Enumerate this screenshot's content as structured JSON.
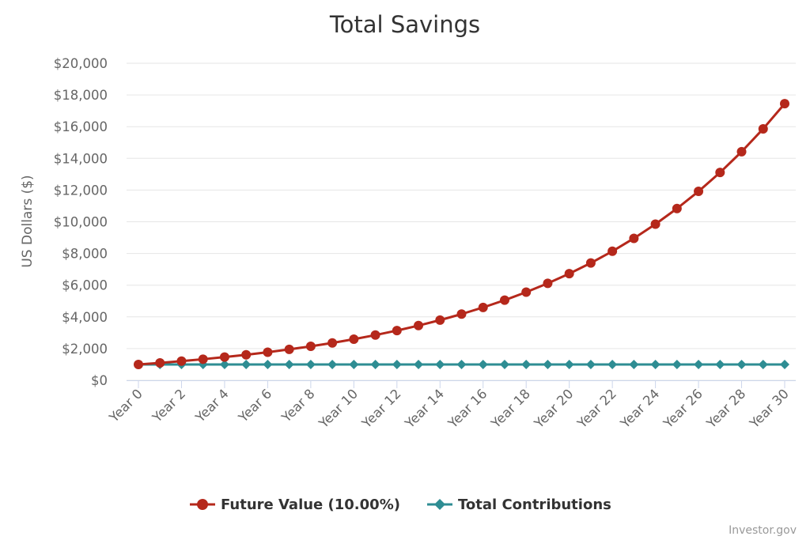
{
  "chart_data": {
    "type": "line",
    "title": "Total Savings",
    "ylabel": "US Dollars ($)",
    "xlabel": "",
    "ylim": [
      0,
      20000
    ],
    "y_ticks": [
      "$0",
      "$2,000",
      "$4,000",
      "$6,000",
      "$8,000",
      "$10,000",
      "$12,000",
      "$14,000",
      "$16,000",
      "$18,000",
      "$20,000"
    ],
    "x_ticks": [
      "Year 0",
      "Year 2",
      "Year 4",
      "Year 6",
      "Year 8",
      "Year 10",
      "Year 12",
      "Year 14",
      "Year 16",
      "Year 18",
      "Year 20",
      "Year 22",
      "Year 24",
      "Year 26",
      "Year 28",
      "Year 30"
    ],
    "x": [
      0,
      1,
      2,
      3,
      4,
      5,
      6,
      7,
      8,
      9,
      10,
      11,
      12,
      13,
      14,
      15,
      16,
      17,
      18,
      19,
      20,
      21,
      22,
      23,
      24,
      25,
      26,
      27,
      28,
      29,
      30
    ],
    "grid": true,
    "legend_position": "bottom-center",
    "series": [
      {
        "name": "Future Value (10.00%)",
        "color": "#b5281b",
        "marker": "circle",
        "values": [
          1000,
          1100,
          1210,
          1331,
          1464,
          1611,
          1772,
          1949,
          2144,
          2358,
          2594,
          2853,
          3138,
          3452,
          3797,
          4177,
          4595,
          5054,
          5560,
          6116,
          6727,
          7400,
          8140,
          8954,
          9850,
          10835,
          11918,
          13110,
          14421,
          15863,
          17449
        ]
      },
      {
        "name": "Total Contributions",
        "color": "#2e8d93",
        "marker": "diamond",
        "values": [
          1000,
          1000,
          1000,
          1000,
          1000,
          1000,
          1000,
          1000,
          1000,
          1000,
          1000,
          1000,
          1000,
          1000,
          1000,
          1000,
          1000,
          1000,
          1000,
          1000,
          1000,
          1000,
          1000,
          1000,
          1000,
          1000,
          1000,
          1000,
          1000,
          1000,
          1000
        ]
      }
    ],
    "credit": "Investor.gov"
  }
}
